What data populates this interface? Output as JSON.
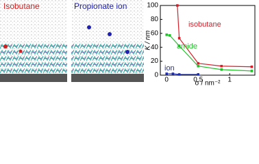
{
  "images": [
    {
      "label": "Isobutane"
    },
    {
      "label": "Propionate ion"
    }
  ],
  "chart_data": {
    "type": "line",
    "xlabel": "σ / nm⁻²",
    "ylabel": "K / nm",
    "xlim": [
      -0.1,
      1.4
    ],
    "ylim": [
      0,
      100
    ],
    "xticks": [
      0,
      0.5,
      1
    ],
    "yticks": [
      0,
      20,
      40,
      60,
      80,
      100
    ],
    "series": [
      {
        "name": "isobutane",
        "color": "#d4202a",
        "x": [
          0.17,
          0.2,
          0.5,
          0.87,
          1.35
        ],
        "values": [
          100,
          53,
          17,
          13,
          12
        ]
      },
      {
        "name": "amide",
        "color": "#22c02a",
        "x": [
          0,
          0.05,
          0.2,
          0.5,
          0.87,
          1.35
        ],
        "values": [
          58,
          57,
          42,
          13,
          8,
          6
        ]
      },
      {
        "name": "ion",
        "color": "#2030b0",
        "x": [
          0,
          0.1,
          0.2,
          0.5
        ],
        "values": [
          2,
          2,
          1,
          1
        ]
      }
    ]
  }
}
